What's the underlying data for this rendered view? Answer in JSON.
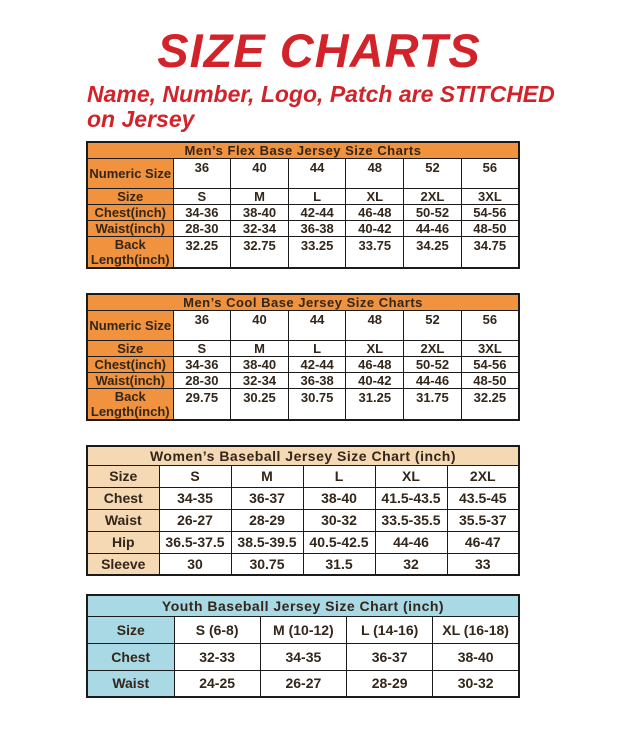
{
  "page": {
    "title": "SIZE CHARTS",
    "subtitle": "Name, Number, Logo, Patch are STITCHED on Jersey"
  },
  "colors": {
    "accent_red": "#d2232a",
    "orange": "#f0923e",
    "peach": "#f5d8b4",
    "blue": "#a8d9e5",
    "table_text": "#33261a",
    "border": "#1b1b1b"
  },
  "tables": [
    {
      "id": "mens-flex-base",
      "title": "Men’s Flex Base Jersey Size Charts",
      "theme": "orange",
      "label_col_width": 86,
      "rows": [
        {
          "label": "Numeric Size",
          "tall": true,
          "values": [
            "36",
            "40",
            "44",
            "48",
            "52",
            "56"
          ]
        },
        {
          "label": "Size",
          "values": [
            "S",
            "M",
            "L",
            "XL",
            "2XL",
            "3XL"
          ]
        },
        {
          "label": "Chest(inch)",
          "values": [
            "34-36",
            "38-40",
            "42-44",
            "46-48",
            "50-52",
            "54-56"
          ]
        },
        {
          "label": "Waist(inch)",
          "values": [
            "28-30",
            "32-34",
            "36-38",
            "40-42",
            "44-46",
            "48-50"
          ]
        },
        {
          "label": "Back Length(inch)",
          "tall": true,
          "values": [
            "32.25",
            "32.75",
            "33.25",
            "33.75",
            "34.25",
            "34.75"
          ]
        }
      ]
    },
    {
      "id": "mens-cool-base",
      "title": "Men’s Cool Base Jersey Size Charts",
      "theme": "orange",
      "label_col_width": 86,
      "rows": [
        {
          "label": "Numeric Size",
          "tall": true,
          "values": [
            "36",
            "40",
            "44",
            "48",
            "52",
            "56"
          ]
        },
        {
          "label": "Size",
          "values": [
            "S",
            "M",
            "L",
            "XL",
            "2XL",
            "3XL"
          ]
        },
        {
          "label": "Chest(inch)",
          "values": [
            "34-36",
            "38-40",
            "42-44",
            "46-48",
            "50-52",
            "54-56"
          ]
        },
        {
          "label": "Waist(inch)",
          "values": [
            "28-30",
            "32-34",
            "36-38",
            "40-42",
            "44-46",
            "48-50"
          ]
        },
        {
          "label": "Back Length(inch)",
          "tall": true,
          "values": [
            "29.75",
            "30.25",
            "30.75",
            "31.25",
            "31.75",
            "32.25"
          ]
        }
      ]
    },
    {
      "id": "womens-baseball",
      "title": "Women’s Baseball Jersey Size Chart (inch)",
      "theme": "peach",
      "label_col_width": 72,
      "rows": [
        {
          "label": "Size",
          "values": [
            "S",
            "M",
            "L",
            "XL",
            "2XL"
          ]
        },
        {
          "label": "Chest",
          "values": [
            "34-35",
            "36-37",
            "38-40",
            "41.5-43.5",
            "43.5-45"
          ]
        },
        {
          "label": "Waist",
          "values": [
            "26-27",
            "28-29",
            "30-32",
            "33.5-35.5",
            "35.5-37"
          ]
        },
        {
          "label": "Hip",
          "values": [
            "36.5-37.5",
            "38.5-39.5",
            "40.5-42.5",
            "44-46",
            "46-47"
          ]
        },
        {
          "label": "Sleeve",
          "values": [
            "30",
            "30.75",
            "31.5",
            "32",
            "33"
          ]
        }
      ]
    },
    {
      "id": "youth-baseball",
      "title": "Youth Baseball Jersey Size Chart (inch)",
      "theme": "blue",
      "label_col_width": 87,
      "rows": [
        {
          "label": "Size",
          "values": [
            "S (6-8)",
            "M (10-12)",
            "L (14-16)",
            "XL (16-18)"
          ]
        },
        {
          "label": "Chest",
          "values": [
            "32-33",
            "34-35",
            "36-37",
            "38-40"
          ]
        },
        {
          "label": "Waist",
          "values": [
            "24-25",
            "26-27",
            "28-29",
            "30-32"
          ]
        }
      ]
    }
  ]
}
